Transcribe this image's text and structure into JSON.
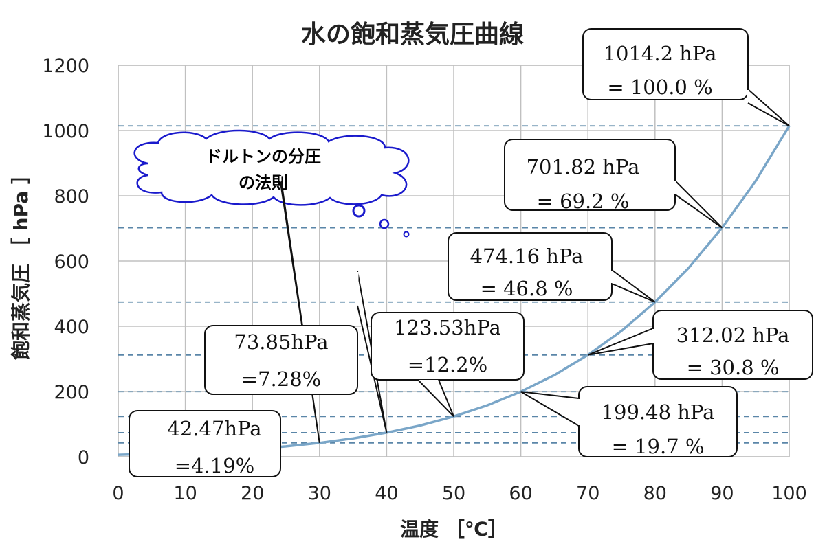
{
  "chart_data": {
    "type": "line",
    "title": "水の飽和蒸気圧曲線",
    "xlabel": "温度 ［℃］",
    "ylabel": "飽和蒸気圧 ［ hPa ］",
    "xlim": [
      0,
      100
    ],
    "ylim": [
      0,
      1200
    ],
    "x_ticks": [
      0,
      10,
      20,
      30,
      40,
      50,
      60,
      70,
      80,
      90,
      100
    ],
    "y_ticks": [
      0,
      200,
      400,
      600,
      800,
      1000,
      1200
    ],
    "grid": true,
    "series": [
      {
        "x": [
          0,
          5,
          10,
          15,
          20,
          25,
          30,
          35,
          40,
          45,
          50,
          55,
          60,
          65,
          70,
          75,
          80,
          85,
          90,
          95,
          100
        ],
        "values": [
          6.11,
          8.72,
          12.28,
          17.05,
          23.39,
          31.69,
          42.47,
          56.29,
          73.85,
          95.88,
          123.53,
          157.6,
          199.48,
          250.4,
          312.02,
          385.6,
          474.16,
          578.5,
          701.82,
          845.3,
          1014.2
        ],
        "color": "#7aa6c8"
      }
    ],
    "reference_lines": [
      {
        "y": 42.47
      },
      {
        "y": 73.85
      },
      {
        "y": 123.53
      },
      {
        "y": 199.48
      },
      {
        "y": 312.02
      },
      {
        "y": 474.16
      },
      {
        "y": 701.82
      },
      {
        "y": 1014.2
      }
    ],
    "annotations": [
      {
        "name": "callout-42",
        "target": [
          30,
          42.47
        ],
        "lines": [
          "42.47hPa",
          "=4.19%"
        ]
      },
      {
        "name": "callout-73",
        "target": [
          40,
          73.85
        ],
        "lines": [
          "73.85hPa",
          "=7.28%"
        ]
      },
      {
        "name": "callout-123",
        "target": [
          50,
          123.53
        ],
        "lines": [
          "123.53hPa",
          "=12.2%"
        ]
      },
      {
        "name": "callout-199",
        "target": [
          60,
          199.48
        ],
        "lines": [
          "199.48 hPa",
          "= 19.7 %"
        ]
      },
      {
        "name": "callout-312",
        "target": [
          70,
          312.02
        ],
        "lines": [
          "312.02 hPa",
          "= 30.8 %"
        ]
      },
      {
        "name": "callout-474",
        "target": [
          80,
          474.16
        ],
        "lines": [
          "474.16 hPa",
          "= 46.8 %"
        ]
      },
      {
        "name": "callout-701",
        "target": [
          90,
          701.82
        ],
        "lines": [
          "701.82 hPa",
          "= 69.2 %"
        ]
      },
      {
        "name": "callout-1014",
        "target": [
          100,
          1014.2
        ],
        "lines": [
          "1014.2 hPa",
          "= 100.0 %"
        ]
      }
    ],
    "thought_bubble": {
      "lines": [
        "ドルトンの分圧",
        "の法則"
      ],
      "color": "#1a1acc"
    },
    "colors": {
      "curve": "#7aa6c8",
      "reference": "#5a86a8",
      "grid": "#c0c0c0",
      "callout_border": "#111111"
    }
  }
}
